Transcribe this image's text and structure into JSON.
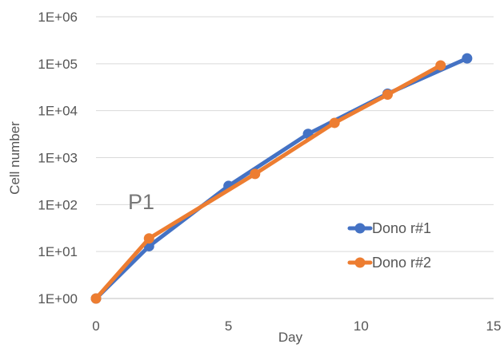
{
  "chart_data": {
    "type": "line",
    "xlabel": "Day",
    "ylabel": "Cell number",
    "xlim": [
      0,
      15
    ],
    "x_ticks": [
      "0",
      "5",
      "10",
      "15"
    ],
    "y_scale": "log",
    "ylim": [
      1,
      1000000
    ],
    "y_ticks": [
      "1E+00",
      "1E+01",
      "1E+02",
      "1E+03",
      "1E+04",
      "1E+05",
      "1E+06"
    ],
    "grid": "horizontal",
    "legend_position": "bottom-right",
    "annotation": "P1",
    "series": [
      {
        "name": "Dono r#1",
        "color": "#4472C4",
        "x": [
          0,
          2,
          5,
          8,
          11,
          14
        ],
        "y": [
          1,
          13,
          250,
          3200,
          23000,
          130000
        ]
      },
      {
        "name": "Dono r#2",
        "color": "#ED7D31",
        "x": [
          0,
          2,
          6,
          9,
          11,
          13
        ],
        "y": [
          1,
          19,
          450,
          5500,
          22000,
          92000
        ]
      }
    ]
  }
}
